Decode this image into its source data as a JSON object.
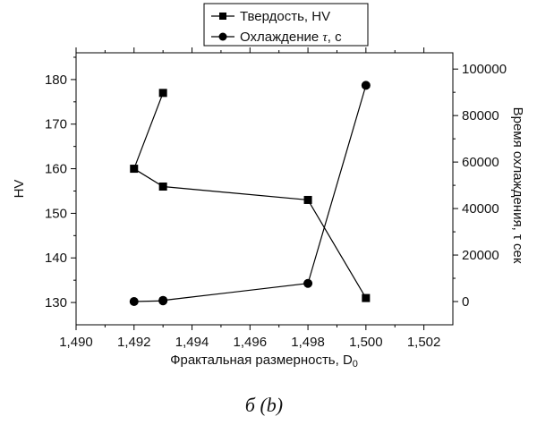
{
  "chart_data": {
    "type": "line",
    "xlabel_main": "Фрактальная размерность, D",
    "xlabel_sub": "0",
    "ylabel_left": "HV",
    "ylabel_right": "Время охлаждения, τ сек",
    "caption": "б (b)",
    "xlim": [
      1.49,
      1.503
    ],
    "ylim_left": [
      125,
      186
    ],
    "ylim_right": [
      -10000,
      107000
    ],
    "x_ticks": [
      "1,490",
      "1,492",
      "1,494",
      "1,496",
      "1,498",
      "1,500",
      "1,502"
    ],
    "x_tick_values": [
      1.49,
      1.492,
      1.494,
      1.496,
      1.498,
      1.5,
      1.502
    ],
    "y_left_ticks": [
      "130",
      "140",
      "150",
      "160",
      "170",
      "180"
    ],
    "y_left_tick_values": [
      130,
      140,
      150,
      160,
      170,
      180
    ],
    "y_right_ticks": [
      "0",
      "20000",
      "40000",
      "60000",
      "80000",
      "100000"
    ],
    "y_right_tick_values": [
      0,
      20000,
      40000,
      60000,
      80000,
      100000
    ],
    "legend_placement": "top-center, outside plot",
    "series": [
      {
        "name": "Твердость, HV",
        "legend_label": "Твердость, HV",
        "marker": "square",
        "axis": "left",
        "points": [
          {
            "x": 1.493,
            "y": 177
          },
          {
            "x": 1.492,
            "y": 160
          },
          {
            "x": 1.493,
            "y": 156
          },
          {
            "x": 1.498,
            "y": 153
          },
          {
            "x": 1.5,
            "y": 131
          }
        ]
      },
      {
        "name": "Охлаждение τ, с",
        "legend_label_main": "Охлаждение ",
        "legend_label_tau": "τ",
        "legend_label_rest": ", с",
        "marker": "circle",
        "axis": "right",
        "points": [
          {
            "x": 1.492,
            "y": 0
          },
          {
            "x": 1.493,
            "y": 300
          },
          {
            "x": 1.493,
            "y": 500
          },
          {
            "x": 1.498,
            "y": 7800
          },
          {
            "x": 1.5,
            "y": 93000
          }
        ]
      }
    ],
    "grid": false,
    "colors": {
      "line": "#000000",
      "background": "#ffffff"
    }
  }
}
